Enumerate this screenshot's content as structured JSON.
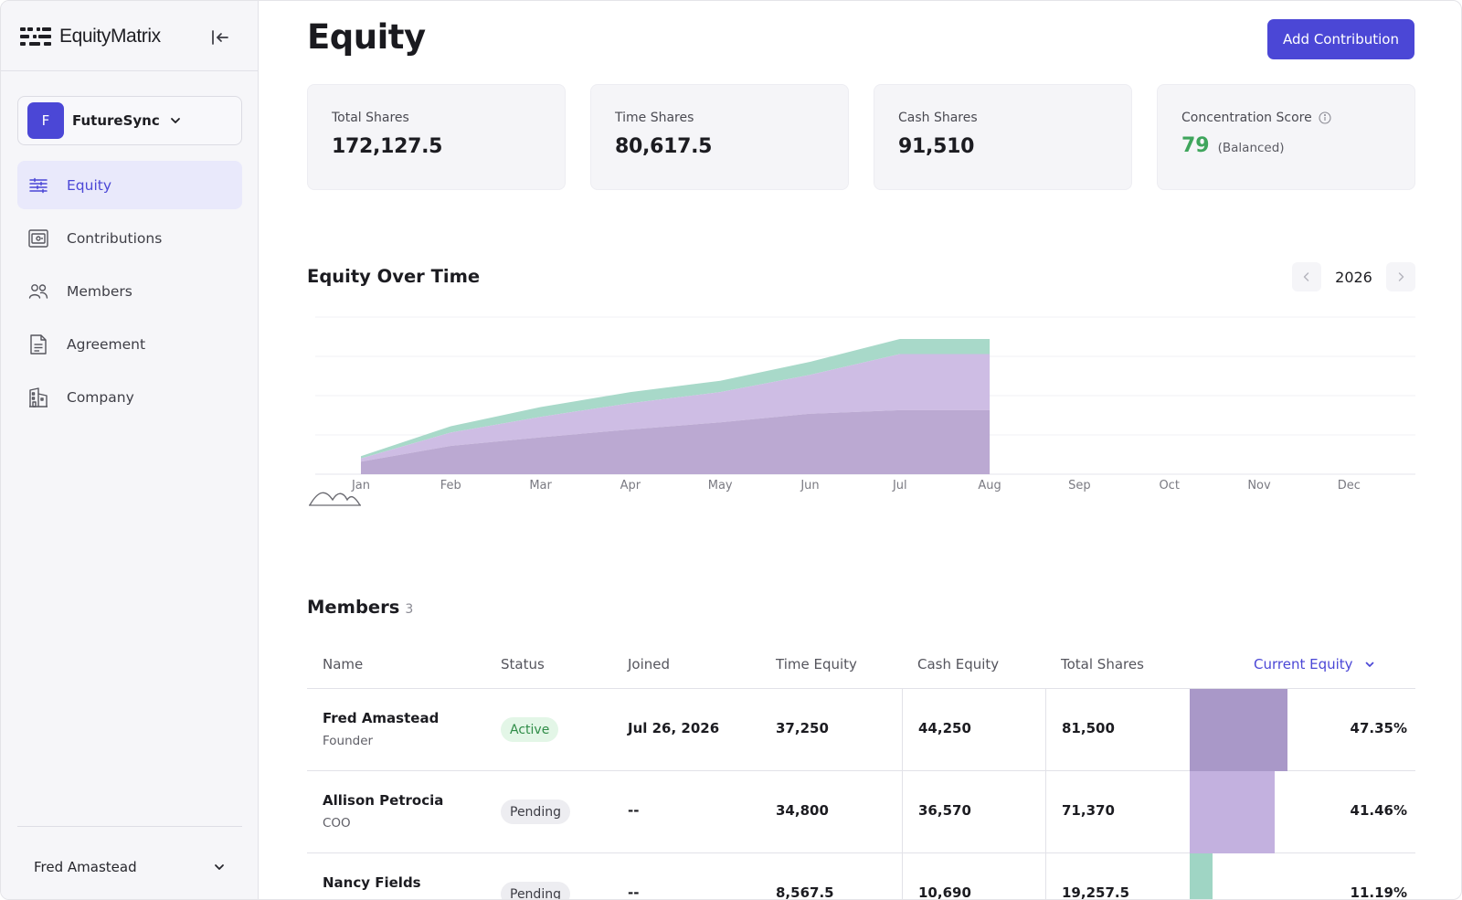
{
  "app": {
    "name": "EquityMatrix"
  },
  "org": {
    "initial": "F",
    "name": "FutureSync"
  },
  "nav": [
    {
      "label": "Equity",
      "icon": "equity-icon",
      "active": true
    },
    {
      "label": "Contributions",
      "icon": "contributions-icon",
      "active": false
    },
    {
      "label": "Members",
      "icon": "members-icon",
      "active": false
    },
    {
      "label": "Agreement",
      "icon": "agreement-icon",
      "active": false
    },
    {
      "label": "Company",
      "icon": "company-icon",
      "active": false
    }
  ],
  "user": {
    "name": "Fred Amastead"
  },
  "page": {
    "title": "Equity",
    "add_label": "Add Contribution"
  },
  "stats": {
    "total_shares": {
      "label": "Total Shares",
      "value": "172,127.5"
    },
    "time_shares": {
      "label": "Time Shares",
      "value": "80,617.5"
    },
    "cash_shares": {
      "label": "Cash Shares",
      "value": "91,510"
    },
    "concentration": {
      "label": "Concentration Score",
      "value": "79",
      "tag": "(Balanced)"
    }
  },
  "chart_section": {
    "title": "Equity Over Time",
    "year": "2026"
  },
  "chart_data": {
    "type": "area",
    "stacked": true,
    "x": [
      "Jan",
      "Feb",
      "Mar",
      "Apr",
      "May",
      "Jun",
      "Jul",
      "Aug",
      "Sep",
      "Oct",
      "Nov",
      "Dec"
    ],
    "series": [
      {
        "color": "#bba9d2",
        "values": [
          16000,
          36000,
          47000,
          57000,
          66000,
          77000,
          81500,
          81500,
          null,
          null,
          null,
          null
        ]
      },
      {
        "color": "#cebde4",
        "values": [
          4000,
          17000,
          26000,
          33500,
          38500,
          49500,
          71370,
          71370,
          null,
          null,
          null,
          null
        ]
      },
      {
        "color": "#a8d9c9",
        "values": [
          3000,
          8000,
          12500,
          14000,
          14500,
          16500,
          19257.5,
          19257.5,
          null,
          null,
          null,
          null
        ]
      }
    ],
    "ylim": [
      0,
      200000
    ],
    "grid": true
  },
  "members": {
    "title": "Members",
    "count": "3",
    "columns": {
      "name": "Name",
      "status": "Status",
      "joined": "Joined",
      "time_equity": "Time Equity",
      "cash_equity": "Cash Equity",
      "total_shares": "Total Shares",
      "current_equity": "Current Equity"
    },
    "rows": [
      {
        "name": "Fred Amastead",
        "role": "Founder",
        "status": "Active",
        "joined": "Jul 26, 2026",
        "time_equity": "37,250",
        "cash_equity": "44,250",
        "total_shares": "81,500",
        "current_equity": "47.35%",
        "equity_fraction": 0.4735,
        "bar_color": "#a998c8"
      },
      {
        "name": "Allison Petrocia",
        "role": "COO",
        "status": "Pending",
        "joined": "--",
        "time_equity": "34,800",
        "cash_equity": "36,570",
        "total_shares": "71,370",
        "current_equity": "41.46%",
        "equity_fraction": 0.4146,
        "bar_color": "#c3b1df"
      },
      {
        "name": "Nancy Fields",
        "role": "",
        "status": "Pending",
        "joined": "--",
        "time_equity": "8,567.5",
        "cash_equity": "10,690",
        "total_shares": "19,257.5",
        "current_equity": "11.19%",
        "equity_fraction": 0.1119,
        "bar_color": "#9fd5c4"
      }
    ]
  }
}
